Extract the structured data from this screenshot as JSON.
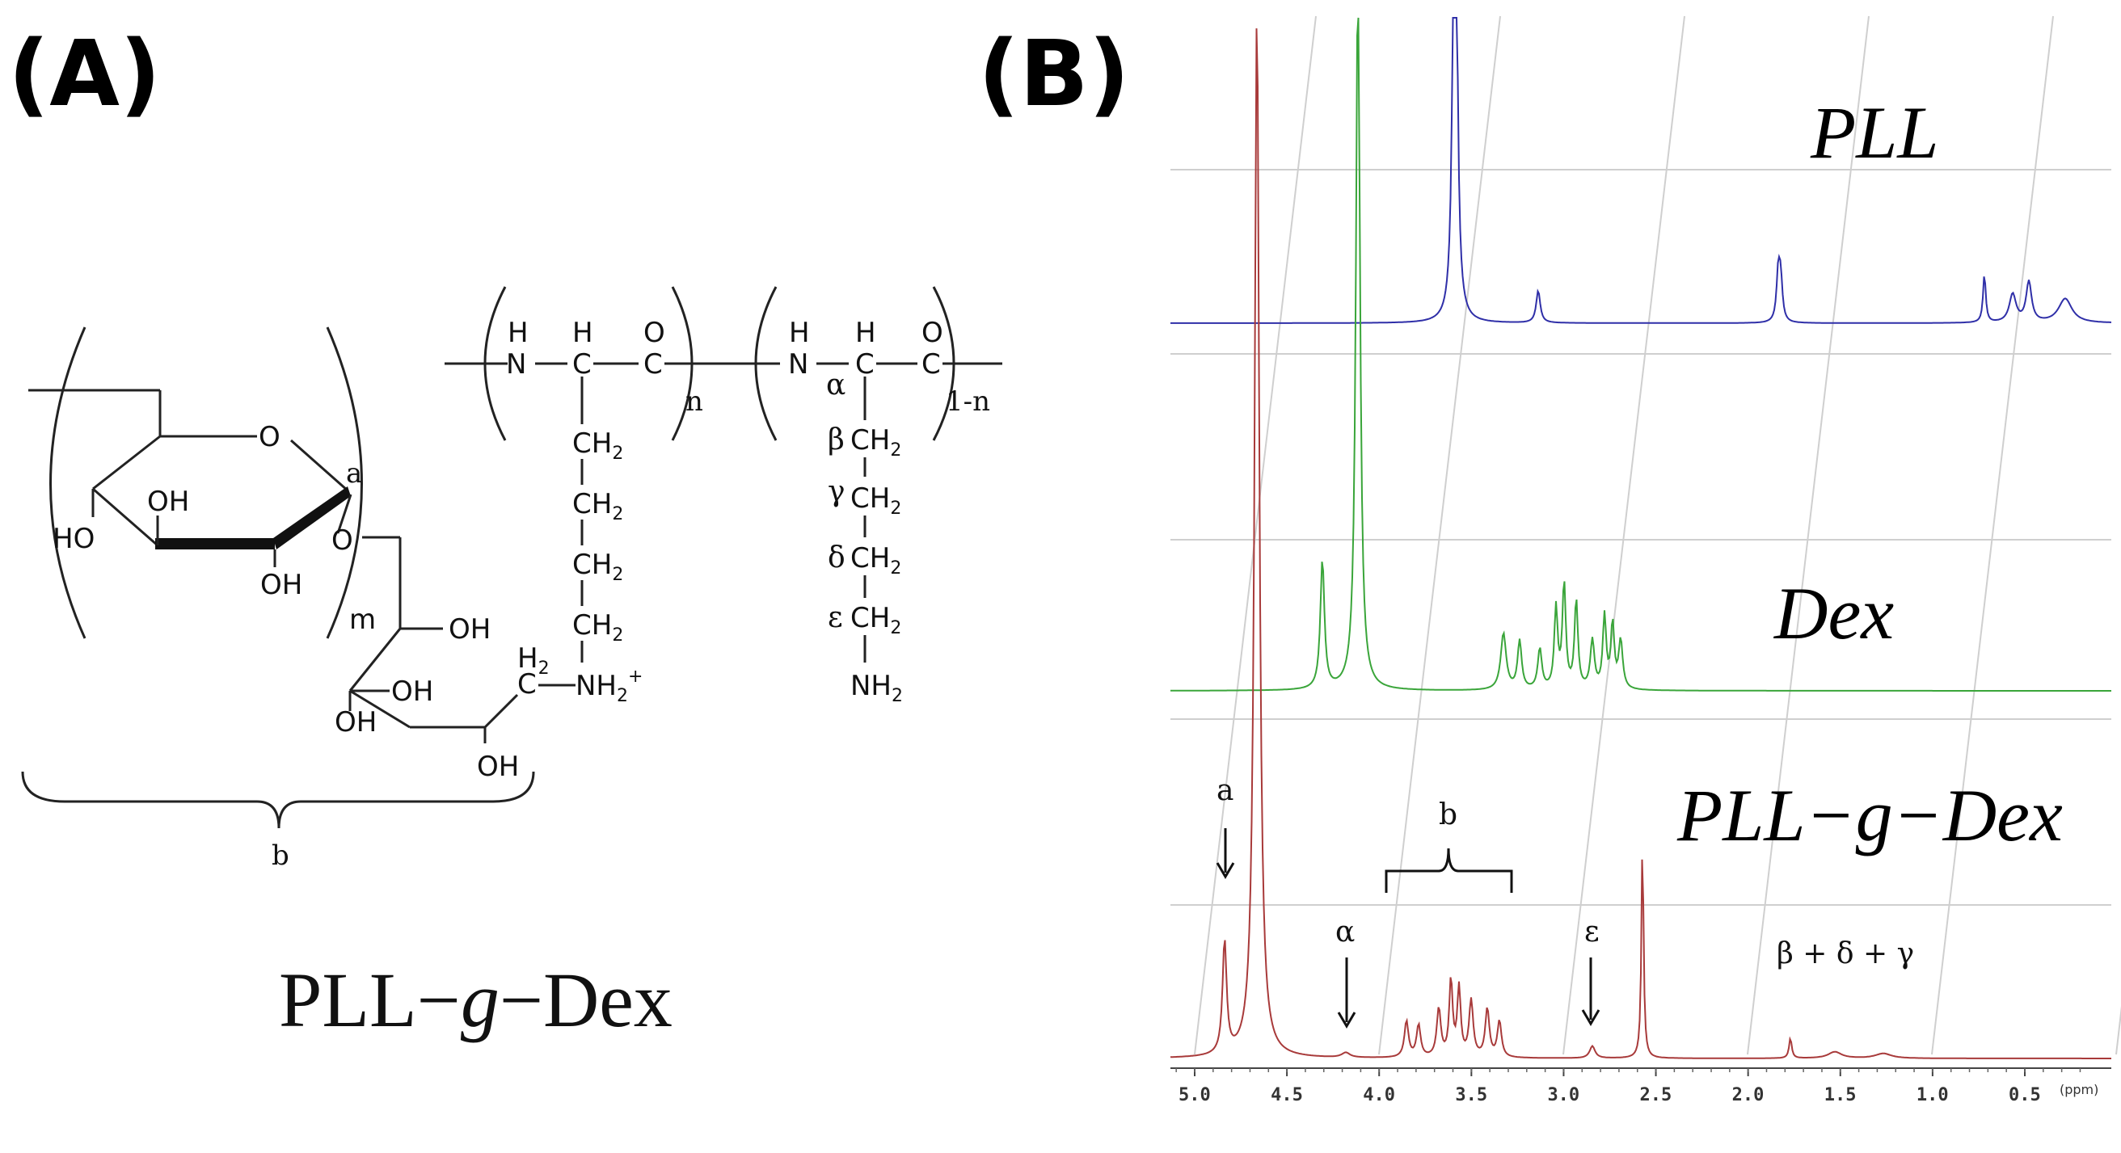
{
  "panel_a": {
    "label": "(A)",
    "name_prefix": "PLL−",
    "name_g": "g",
    "name_suffix": "−Dex",
    "chem": {
      "O": "O",
      "a": "a",
      "OH": "OH",
      "HO": "HO",
      "m": "m",
      "n": "n",
      "one_minus_n": "1-n",
      "b": "b",
      "H": "H",
      "N": "N",
      "C": "C",
      "CH2": "CH",
      "sub2": "2",
      "NH2plus_main": "NH",
      "NH2plus_sup": "+",
      "H2": "H",
      "alpha": "α",
      "beta": "β",
      "gamma": "γ",
      "delta": "δ",
      "epsilon": "ε",
      "NH2": "NH"
    }
  },
  "panel_b": {
    "label": "(B)",
    "spectra": [
      {
        "name": "PLL",
        "color": "#2f2fa8"
      },
      {
        "name": "Dex",
        "color": "#3aa53a"
      },
      {
        "name": "PLL−g−Dex",
        "color": "#a83a3a"
      }
    ],
    "annotations": {
      "a": "a",
      "b": "b",
      "alpha": "α",
      "epsilon": "ε",
      "bdg": "β + δ + γ"
    },
    "axis": {
      "ticks": [
        "5.0",
        "4.5",
        "4.0",
        "3.5",
        "3.0",
        "2.5",
        "2.0",
        "1.5",
        "1.0",
        "0.5"
      ],
      "unit": "(ppm)"
    }
  }
}
